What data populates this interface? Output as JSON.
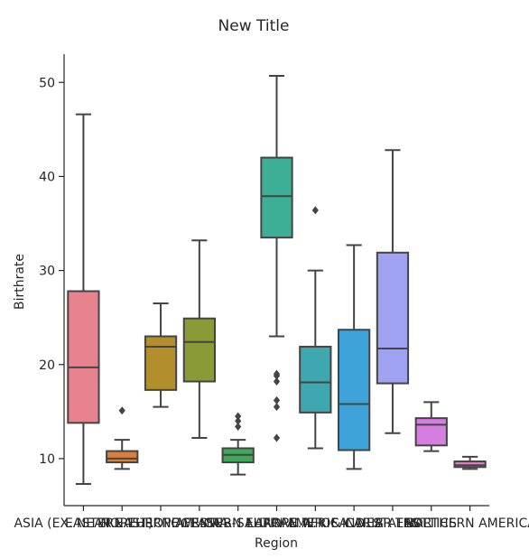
{
  "chart_data": {
    "type": "box",
    "title": "New Title",
    "xlabel": "Region",
    "ylabel": "Birthrate",
    "ylim": [
      5,
      53
    ],
    "yticks": [
      10,
      20,
      30,
      40,
      50
    ],
    "grid": false,
    "categories": [
      "ASIA (EX. NEAR EAST)",
      "EASTERN EUROPE",
      "NORTHERN AFRICA",
      "OCEANIA",
      "WESTERN EUROPE",
      "SUB-SAHARAN AFRICA",
      "LATIN AMER. & CARIB",
      "C.W. OF IND. STATES",
      "NEAR EAST",
      "BALTICS",
      "NORTHERN AMERICA"
    ],
    "boxes": [
      {
        "color": "#e8828e",
        "whislo": 7.3,
        "q1": 13.8,
        "med": 19.7,
        "q3": 27.8,
        "whishi": 46.6,
        "fliers": []
      },
      {
        "color": "#db7f3a",
        "whislo": 8.9,
        "q1": 9.6,
        "med": 10.0,
        "q3": 10.8,
        "whishi": 12.0,
        "fliers": [
          15.1
        ]
      },
      {
        "color": "#b38e2c",
        "whislo": 15.5,
        "q1": 17.3,
        "med": 21.9,
        "q3": 23.0,
        "whishi": 26.5,
        "fliers": []
      },
      {
        "color": "#8a9a37",
        "whislo": 12.2,
        "q1": 18.2,
        "med": 22.4,
        "q3": 24.9,
        "whishi": 33.2,
        "fliers": []
      },
      {
        "color": "#3fa85b",
        "whislo": 8.3,
        "q1": 9.6,
        "med": 10.4,
        "q3": 11.1,
        "whishi": 12.0,
        "fliers": [
          13.4,
          14.0,
          14.5
        ]
      },
      {
        "color": "#3eaf97",
        "whislo": 23.0,
        "q1": 33.5,
        "med": 37.9,
        "q3": 42.0,
        "whishi": 50.7,
        "fliers": [
          12.2,
          15.5,
          16.2,
          18.2,
          18.8,
          19.0
        ]
      },
      {
        "color": "#3ea7b0",
        "whislo": 11.1,
        "q1": 14.9,
        "med": 18.1,
        "q3": 21.9,
        "whishi": 30.0,
        "fliers": [
          36.4
        ]
      },
      {
        "color": "#3da3d9",
        "whislo": 8.9,
        "q1": 10.9,
        "med": 15.8,
        "q3": 23.7,
        "whishi": 32.7,
        "fliers": []
      },
      {
        "color": "#9fa2f0",
        "whislo": 12.7,
        "q1": 18.0,
        "med": 21.7,
        "q3": 31.9,
        "whishi": 42.8,
        "fliers": []
      },
      {
        "color": "#d67de0",
        "whislo": 10.8,
        "q1": 11.4,
        "med": 13.6,
        "q3": 14.3,
        "whishi": 16.0,
        "fliers": []
      },
      {
        "color": "#e27cc2",
        "whislo": 8.9,
        "q1": 9.1,
        "med": 9.3,
        "q3": 9.7,
        "whishi": 10.2,
        "fliers": []
      }
    ]
  }
}
